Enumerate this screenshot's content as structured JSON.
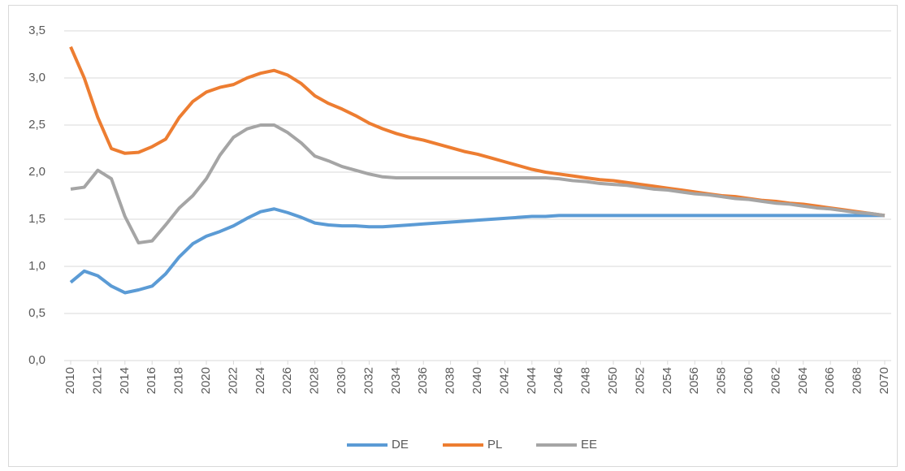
{
  "chart_data": {
    "type": "line",
    "x": [
      2010,
      2011,
      2012,
      2013,
      2014,
      2015,
      2016,
      2017,
      2018,
      2019,
      2020,
      2021,
      2022,
      2023,
      2024,
      2025,
      2026,
      2027,
      2028,
      2029,
      2030,
      2031,
      2032,
      2033,
      2034,
      2035,
      2036,
      2037,
      2038,
      2039,
      2040,
      2041,
      2042,
      2043,
      2044,
      2045,
      2046,
      2047,
      2048,
      2049,
      2050,
      2051,
      2052,
      2053,
      2054,
      2055,
      2056,
      2057,
      2058,
      2059,
      2060,
      2061,
      2062,
      2063,
      2064,
      2065,
      2066,
      2067,
      2068,
      2069,
      2070
    ],
    "xlim": [
      2010,
      2070
    ],
    "xticks": [
      2010,
      2012,
      2014,
      2016,
      2018,
      2020,
      2022,
      2024,
      2026,
      2028,
      2030,
      2032,
      2034,
      2036,
      2038,
      2040,
      2042,
      2044,
      2046,
      2048,
      2050,
      2052,
      2054,
      2056,
      2058,
      2060,
      2062,
      2064,
      2066,
      2068,
      2070
    ],
    "ylim": [
      0,
      3.5
    ],
    "yticks": [
      {
        "value": 0,
        "label": "0,0"
      },
      {
        "value": 0.5,
        "label": "0,5"
      },
      {
        "value": 1,
        "label": "1,0"
      },
      {
        "value": 1.5,
        "label": "1,5"
      },
      {
        "value": 2,
        "label": "2,0"
      },
      {
        "value": 2.5,
        "label": "2,5"
      },
      {
        "value": 3,
        "label": "3,0"
      },
      {
        "value": 3.5,
        "label": "3,5"
      }
    ],
    "grid": true,
    "legend": "bottom",
    "series": [
      {
        "name": "DE",
        "color": "#5b9bd5",
        "values": [
          0.83,
          0.95,
          0.9,
          0.79,
          0.72,
          0.75,
          0.79,
          0.92,
          1.1,
          1.24,
          1.32,
          1.37,
          1.43,
          1.51,
          1.58,
          1.61,
          1.57,
          1.52,
          1.46,
          1.44,
          1.43,
          1.43,
          1.42,
          1.42,
          1.43,
          1.44,
          1.45,
          1.46,
          1.47,
          1.48,
          1.49,
          1.5,
          1.51,
          1.52,
          1.53,
          1.53,
          1.54,
          1.54,
          1.54,
          1.54,
          1.54,
          1.54,
          1.54,
          1.54,
          1.54,
          1.54,
          1.54,
          1.54,
          1.54,
          1.54,
          1.54,
          1.54,
          1.54,
          1.54,
          1.54,
          1.54,
          1.54,
          1.54,
          1.54,
          1.54,
          1.54
        ]
      },
      {
        "name": "PL",
        "color": "#ed7d31",
        "values": [
          3.33,
          3.0,
          2.58,
          2.25,
          2.2,
          2.21,
          2.27,
          2.35,
          2.58,
          2.75,
          2.85,
          2.9,
          2.93,
          3.0,
          3.05,
          3.08,
          3.03,
          2.94,
          2.81,
          2.73,
          2.67,
          2.6,
          2.52,
          2.46,
          2.41,
          2.37,
          2.34,
          2.3,
          2.26,
          2.22,
          2.19,
          2.15,
          2.11,
          2.07,
          2.03,
          2.0,
          1.98,
          1.96,
          1.94,
          1.92,
          1.91,
          1.89,
          1.87,
          1.85,
          1.83,
          1.81,
          1.79,
          1.77,
          1.75,
          1.74,
          1.72,
          1.7,
          1.69,
          1.67,
          1.66,
          1.64,
          1.62,
          1.6,
          1.58,
          1.56,
          1.54
        ]
      },
      {
        "name": "EE",
        "color": "#a5a5a5",
        "values": [
          1.82,
          1.84,
          2.02,
          1.93,
          1.53,
          1.25,
          1.27,
          1.44,
          1.62,
          1.75,
          1.93,
          2.18,
          2.37,
          2.46,
          2.5,
          2.5,
          2.42,
          2.31,
          2.17,
          2.12,
          2.06,
          2.02,
          1.98,
          1.95,
          1.94,
          1.94,
          1.94,
          1.94,
          1.94,
          1.94,
          1.94,
          1.94,
          1.94,
          1.94,
          1.94,
          1.94,
          1.93,
          1.91,
          1.9,
          1.88,
          1.87,
          1.86,
          1.84,
          1.82,
          1.81,
          1.79,
          1.77,
          1.76,
          1.74,
          1.72,
          1.71,
          1.69,
          1.67,
          1.66,
          1.64,
          1.62,
          1.61,
          1.59,
          1.57,
          1.56,
          1.54
        ]
      }
    ]
  }
}
